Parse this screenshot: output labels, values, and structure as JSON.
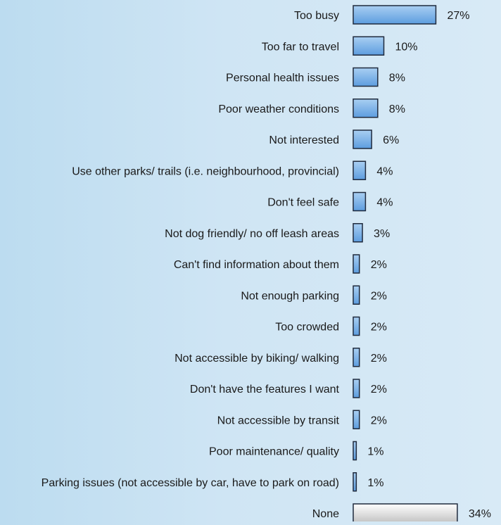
{
  "chart_data": {
    "type": "bar",
    "orientation": "horizontal",
    "value_suffix": "%",
    "categories": [
      "Too busy",
      "Too far to travel",
      "Personal health issues",
      "Poor weather conditions",
      "Not interested",
      "Use other parks/ trails (i.e. neighbourhood, provincial)",
      "Don't feel safe",
      "Not dog friendly/ no off leash areas",
      "Can't find information about them",
      "Not enough parking",
      "Too crowded",
      "Not accessible by biking/ walking",
      "Don't have the features I want",
      "Not accessible by transit",
      "Poor maintenance/ quality",
      "Parking issues (not accessible by car, have to park on road)",
      "None"
    ],
    "values": [
      27,
      10,
      8,
      8,
      6,
      4,
      4,
      3,
      2,
      2,
      2,
      2,
      2,
      2,
      1,
      1,
      34
    ],
    "colors": {
      "default_bar_top": "#a9cff2",
      "default_bar_bottom": "#5d9ddf",
      "highlight_bar_top": "#ffffff",
      "highlight_bar_bottom": "#c4c4c4",
      "bar_stroke": "#1f2a3d"
    },
    "highlight_category": "None",
    "grid": false,
    "legend": "none"
  }
}
